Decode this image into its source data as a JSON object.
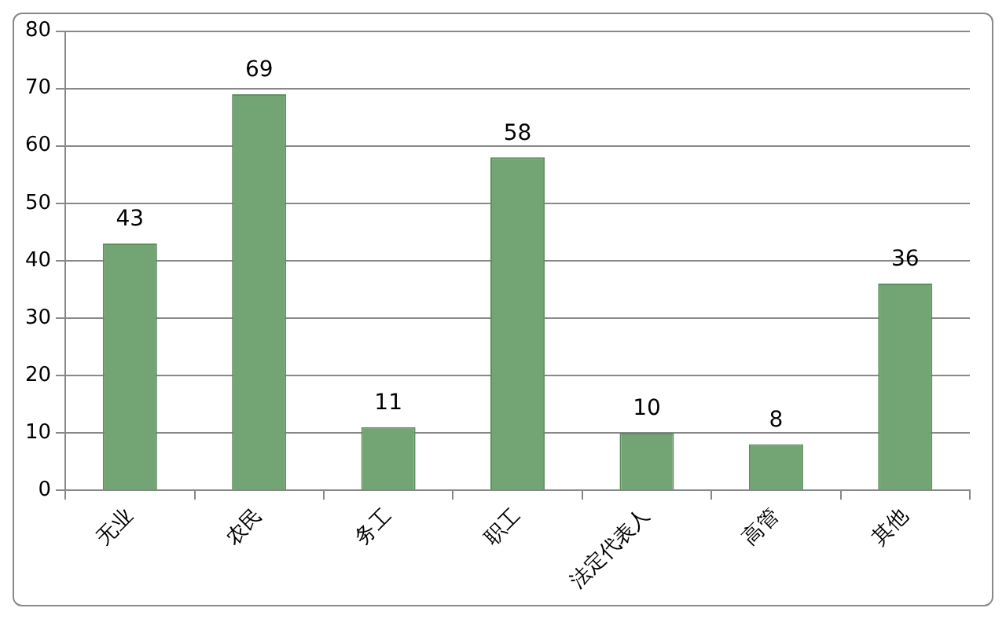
{
  "chart_data": {
    "type": "bar",
    "categories": [
      "无业",
      "农民",
      "务工",
      "职工",
      "法定代表人",
      "高管",
      "其他"
    ],
    "values": [
      43,
      69,
      11,
      58,
      10,
      8,
      36
    ],
    "color": "#73a474",
    "ylim": [
      0,
      80
    ],
    "yticks": [
      0,
      10,
      20,
      30,
      40,
      50,
      60,
      70,
      80
    ],
    "grid": "y",
    "data_labels": true,
    "legend": false
  }
}
